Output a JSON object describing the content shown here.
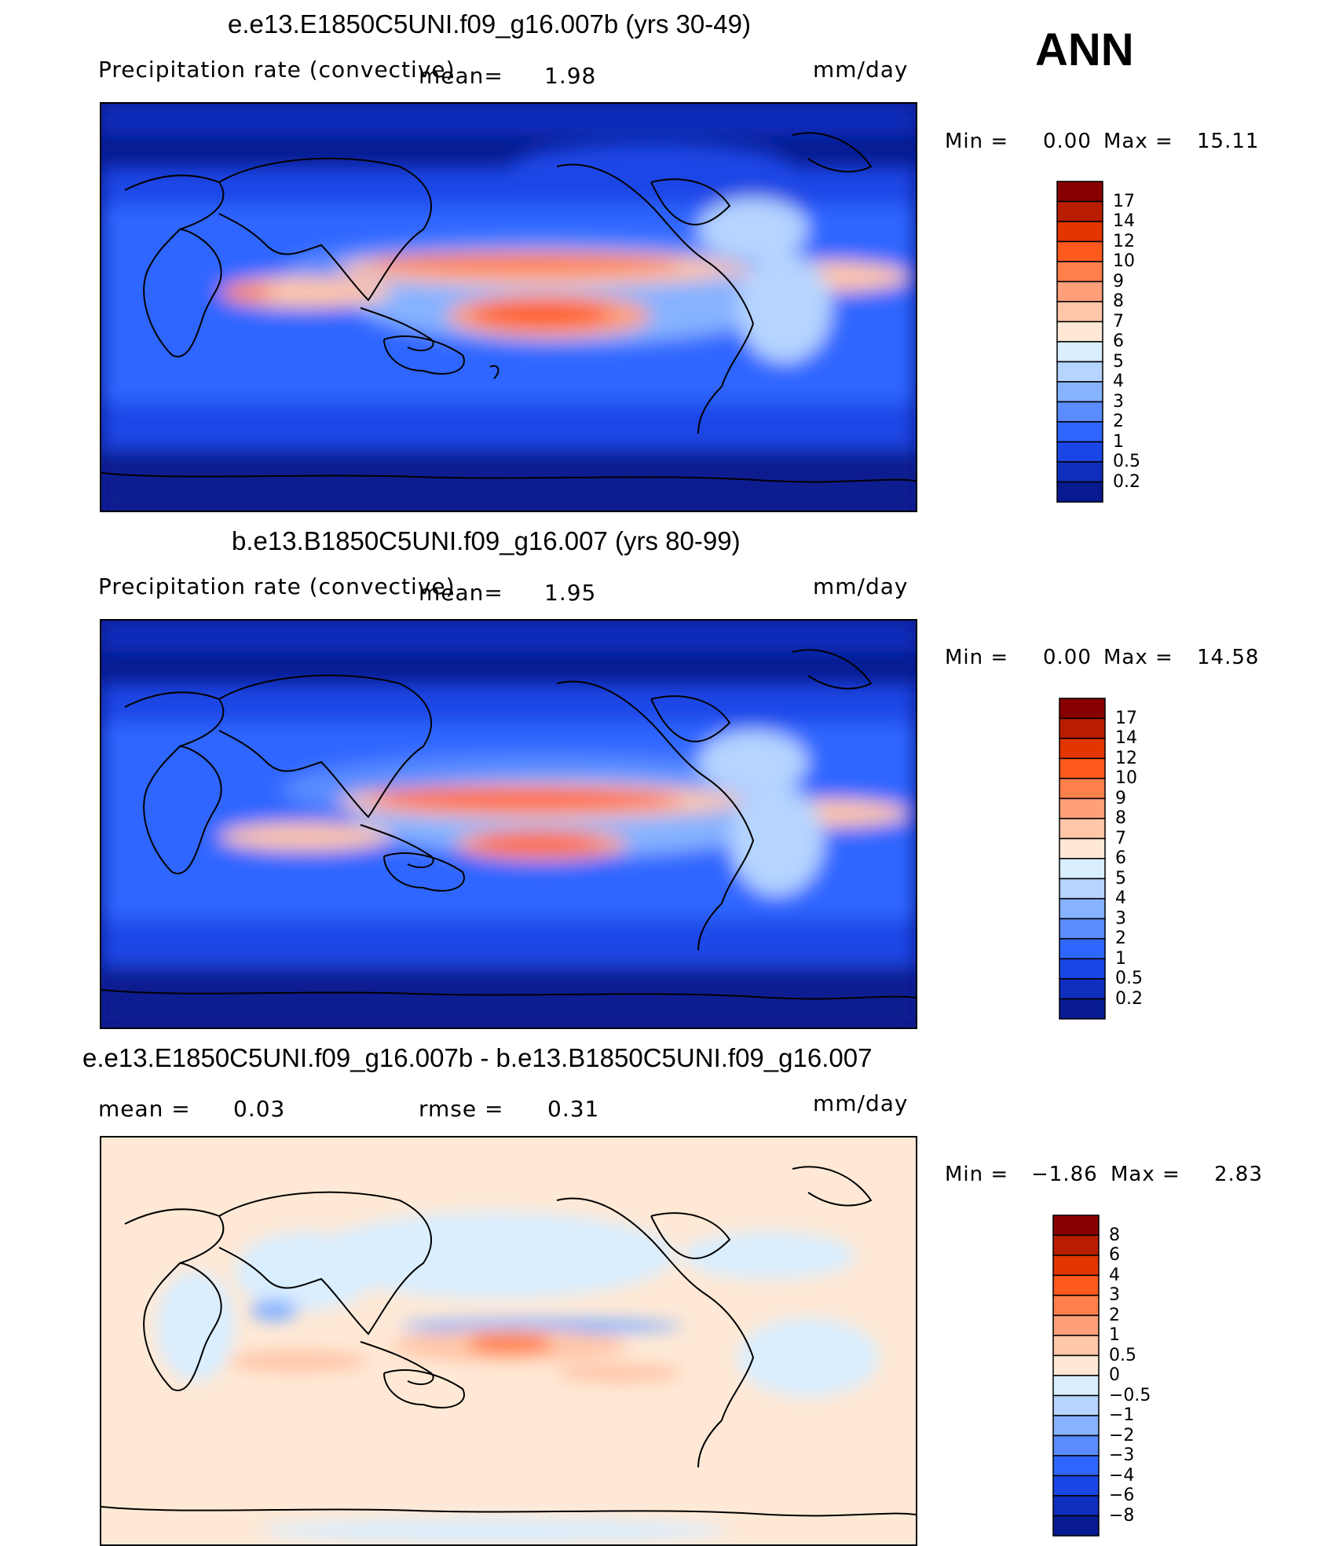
{
  "season": "ANN",
  "panels": [
    {
      "title": "e.e13.E1850C5UNI.f09_g16.007b (yrs 30-49)",
      "variable": "Precipitation rate (convective)",
      "stat_label": "mean=",
      "stat_value": "1.98",
      "units": "mm/day",
      "min_label": "Min =",
      "min_value": "0.00",
      "max_label": "Max =",
      "max_value": "15.11",
      "levels": [
        "17",
        "14",
        "12",
        "10",
        "9",
        "8",
        "7",
        "6",
        "5",
        "4",
        "3",
        "2",
        "1",
        "0.5",
        "0.2"
      ],
      "colors": [
        "#870000",
        "#b81d00",
        "#e23500",
        "#ff5a1e",
        "#ff7f4a",
        "#ffa07a",
        "#ffc6a8",
        "#ffe9d6",
        "#d9eeff",
        "#b5d4ff",
        "#86b2ff",
        "#5a8cff",
        "#2f66ff",
        "#1a46e6",
        "#0f2ebd",
        "#071a8f"
      ]
    },
    {
      "title": "b.e13.B1850C5UNI.f09_g16.007 (yrs 80-99)",
      "variable": "Precipitation rate (convective)",
      "stat_label": "mean=",
      "stat_value": "1.95",
      "units": "mm/day",
      "min_label": "Min =",
      "min_value": "0.00",
      "max_label": "Max =",
      "max_value": "14.58",
      "levels": [
        "17",
        "14",
        "12",
        "10",
        "9",
        "8",
        "7",
        "6",
        "5",
        "4",
        "3",
        "2",
        "1",
        "0.5",
        "0.2"
      ],
      "colors": [
        "#870000",
        "#b81d00",
        "#e23500",
        "#ff5a1e",
        "#ff7f4a",
        "#ffa07a",
        "#ffc6a8",
        "#ffe9d6",
        "#d9eeff",
        "#b5d4ff",
        "#86b2ff",
        "#5a8cff",
        "#2f66ff",
        "#1a46e6",
        "#0f2ebd",
        "#071a8f"
      ]
    },
    {
      "title": "e.e13.E1850C5UNI.f09_g16.007b - b.e13.B1850C5UNI.f09_g16.007",
      "mean_label": "mean =",
      "mean_value": "0.03",
      "rmse_label": "rmse =",
      "rmse_value": "0.31",
      "units": "mm/day",
      "min_label": "Min =",
      "min_value": "−1.86",
      "max_label": "Max =",
      "max_value": "2.83",
      "levels": [
        "8",
        "6",
        "4",
        "3",
        "2",
        "1",
        "0.5",
        "0",
        "−0.5",
        "−1",
        "−2",
        "−3",
        "−4",
        "−6",
        "−8"
      ],
      "colors": [
        "#870000",
        "#b81d00",
        "#e23500",
        "#ff5a1e",
        "#ff7f4a",
        "#ffa07a",
        "#ffc6a8",
        "#ffe9d6",
        "#d9eeff",
        "#b5d4ff",
        "#86b2ff",
        "#5a8cff",
        "#2f66ff",
        "#1a46e6",
        "#0f2ebd",
        "#071a8f"
      ]
    }
  ],
  "chart_data": [
    {
      "type": "heatmap",
      "title": "e.e13.E1850C5UNI.f09_g16.007b (yrs 30-49)",
      "variable": "Precipitation rate (convective)",
      "units": "mm/day",
      "mean": 1.98,
      "min": 0.0,
      "max": 15.11,
      "contour_levels": [
        0.2,
        0.5,
        1,
        2,
        3,
        4,
        5,
        6,
        7,
        8,
        9,
        10,
        12,
        14,
        17
      ]
    },
    {
      "type": "heatmap",
      "title": "b.e13.B1850C5UNI.f09_g16.007 (yrs 80-99)",
      "variable": "Precipitation rate (convective)",
      "units": "mm/day",
      "mean": 1.95,
      "min": 0.0,
      "max": 14.58,
      "contour_levels": [
        0.2,
        0.5,
        1,
        2,
        3,
        4,
        5,
        6,
        7,
        8,
        9,
        10,
        12,
        14,
        17
      ]
    },
    {
      "type": "heatmap",
      "title": "e.e13.E1850C5UNI.f09_g16.007b - b.e13.B1850C5UNI.f09_g16.007",
      "units": "mm/day",
      "mean": 0.03,
      "rmse": 0.31,
      "min": -1.86,
      "max": 2.83,
      "contour_levels": [
        -8,
        -6,
        -4,
        -3,
        -2,
        -1,
        -0.5,
        0,
        0.5,
        1,
        2,
        3,
        4,
        6,
        8
      ]
    }
  ]
}
